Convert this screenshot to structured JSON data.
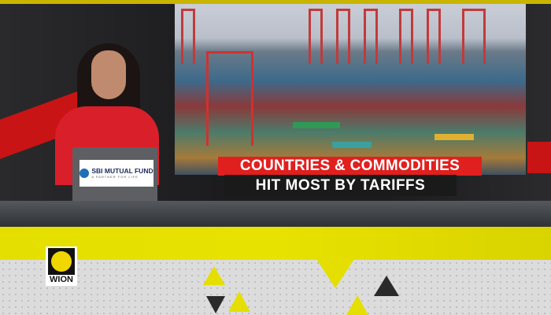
{
  "headline": {
    "line1": "COUNTRIES & COMMODITIES",
    "line2": "HIT MOST BY TARIFFS"
  },
  "sponsor": {
    "name": "SBI MUTUAL FUND",
    "tagline": "A PARTNER FOR LIFE",
    "icon": "sbi-logo-icon"
  },
  "channel_logo": {
    "text": "WION"
  },
  "colors": {
    "headline_red": "#e0201f",
    "headline_black": "#1a1a1a",
    "accent_yellow": "#e4df00",
    "dress_red": "#d9202a"
  }
}
